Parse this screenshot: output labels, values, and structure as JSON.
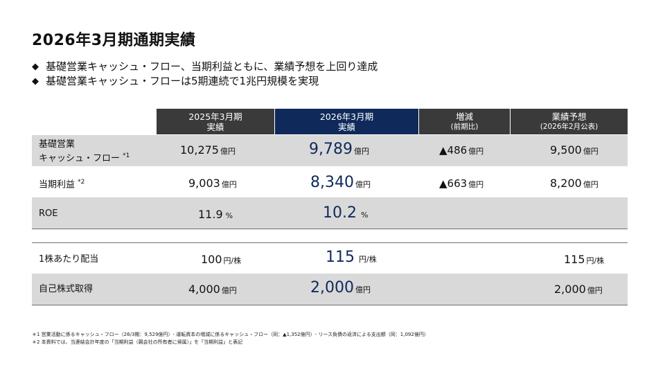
{
  "title": "2026年3月期通期実績",
  "bullets": [
    "基礎営業キャッシュ・フロー、当期利益ともに、業績予想を上回り達成",
    "基礎営業キャッシュ・フローは5期連続で1兆円規模を実現"
  ],
  "bullet_symbol": "◆",
  "columns": [
    {
      "line1": "2025年3月期",
      "line2": "実績"
    },
    {
      "line1": "2026年3月期",
      "line2": "実績"
    },
    {
      "line1": "増減",
      "line2": "(前期比)"
    },
    {
      "line1": "業績予想",
      "line2": "(2026年2月公表)"
    }
  ],
  "rows": {
    "cf": {
      "label1": "基礎営業",
      "label2": "キャッシュ・フロー",
      "mark": "*1",
      "prev": "10,275",
      "curr": "9,789",
      "diff": "▲486",
      "forecast": "9,500",
      "unit": "億円"
    },
    "profit": {
      "label": "当期利益",
      "mark": "*2",
      "prev": "9,003",
      "curr": "8,340",
      "diff": "▲663",
      "forecast": "8,200",
      "unit": "億円"
    },
    "roe": {
      "label": "ROE",
      "prev": "11.9",
      "curr": "10.2",
      "unit": "%"
    },
    "dividend": {
      "label": "1株あたり配当",
      "prev": "100",
      "curr": "115",
      "forecast": "115",
      "unit": "円/株"
    },
    "buyback": {
      "label": "自己株式取得",
      "prev": "4,000",
      "curr": "2,000",
      "forecast": "2,000",
      "unit": "億円"
    }
  },
  "footnotes": [
    "＊1 営業活動に係るキャッシュ・フロー（26/3期：9,529億円）- 運転資本の増減に係るキャッシュ・フロー（同：▲1,352億円）- リース負債の返済による支出額（同：1,092億円）",
    "＊2 本資料では、当連結会計年度の「当期利益（親会社の所有者に帰属）」を「当期利益」と表記"
  ]
}
